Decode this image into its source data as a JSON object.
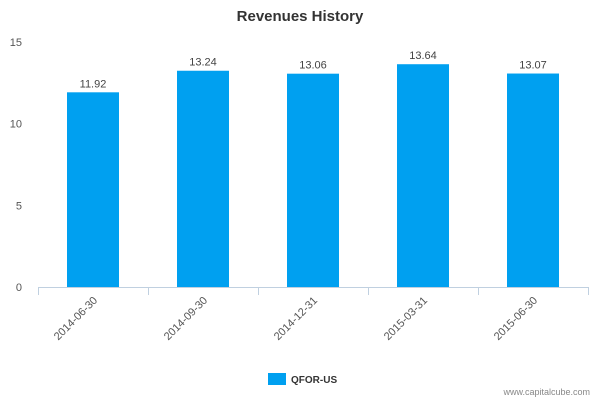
{
  "chart_data": {
    "type": "bar",
    "title": "Revenues History",
    "xlabel": "",
    "ylabel": "",
    "categories": [
      "2014-06-30",
      "2014-09-30",
      "2014-12-31",
      "2015-03-31",
      "2015-06-30"
    ],
    "series": [
      {
        "name": "QFOR-US",
        "values": [
          11.92,
          13.24,
          13.06,
          13.64,
          13.07
        ],
        "color": "#00a0f0"
      }
    ],
    "ylim": [
      0,
      15
    ],
    "yticks": [
      0,
      5,
      10,
      15
    ],
    "grid": false,
    "data_labels": true,
    "legend_position": "bottom-center"
  },
  "credit": "www.capitalcube.com"
}
